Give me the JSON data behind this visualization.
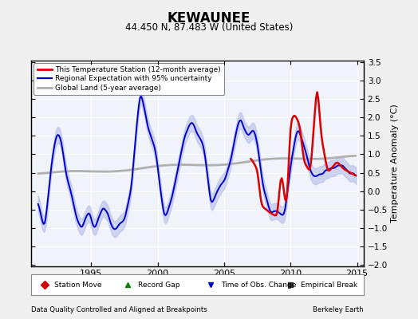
{
  "title": "KEWAUNEE",
  "subtitle": "44.450 N, 87.483 W (United States)",
  "ylabel": "Temperature Anomaly (°C)",
  "footer_left": "Data Quality Controlled and Aligned at Breakpoints",
  "footer_right": "Berkeley Earth",
  "xlim": [
    1990.5,
    2015.5
  ],
  "ylim": [
    -2.05,
    3.55
  ],
  "yticks": [
    -2,
    -1.5,
    -1,
    -0.5,
    0,
    0.5,
    1,
    1.5,
    2,
    2.5,
    3,
    3.5
  ],
  "xticks": [
    1995,
    2000,
    2005,
    2010,
    2015
  ],
  "bg_color": "#f0f0f0",
  "plot_bg_color": "#f0f4fa",
  "line_color_station": "#dd0000",
  "line_color_regional": "#0000cc",
  "fill_color_regional": "#b0b8e8",
  "line_color_global": "#b0b0b0",
  "legend_items": [
    {
      "label": "This Temperature Station (12-month average)",
      "color": "#dd0000",
      "lw": 2.0
    },
    {
      "label": "Regional Expectation with 95% uncertainty",
      "color": "#0000cc",
      "lw": 1.6
    },
    {
      "label": "Global Land (5-year average)",
      "color": "#b0b0b0",
      "lw": 2.0
    }
  ],
  "bottom_legend": [
    {
      "label": "Station Move",
      "marker": "D",
      "color": "#cc0000"
    },
    {
      "label": "Record Gap",
      "marker": "^",
      "color": "#008800"
    },
    {
      "label": "Time of Obs. Change",
      "marker": "v",
      "color": "#0000cc"
    },
    {
      "label": "Empirical Break",
      "marker": "s",
      "color": "#333333"
    }
  ]
}
